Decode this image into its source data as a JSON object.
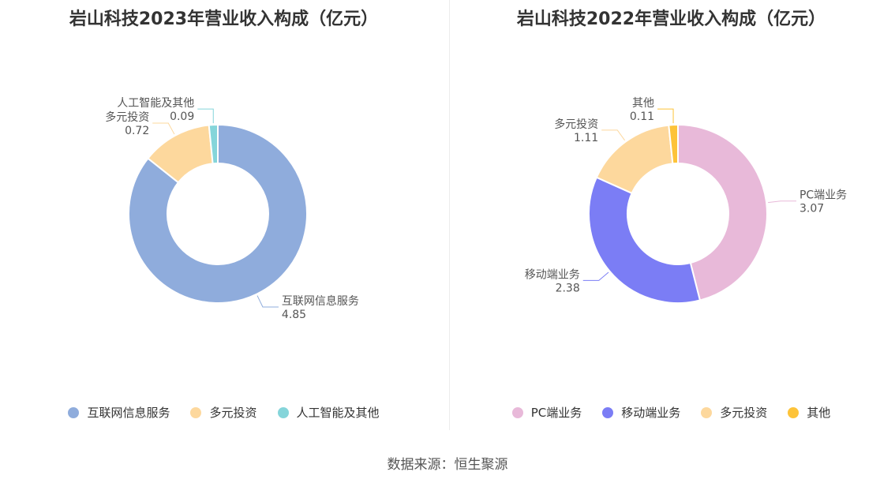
{
  "source": "数据来源：恒生聚源",
  "chart_data": [
    {
      "type": "pie",
      "title": "岩山科技2023年营业收入构成（亿元）",
      "categories": [
        "互联网信息服务",
        "多元投资",
        "人工智能及其他"
      ],
      "values": [
        4.85,
        0.72,
        0.09
      ],
      "colors": [
        "#8facdc",
        "#fdd89d",
        "#85d5da"
      ],
      "legend_position": "bottom"
    },
    {
      "type": "pie",
      "title": "岩山科技2022年营业收入构成（亿元）",
      "categories": [
        "PC端业务",
        "移动端业务",
        "多元投资",
        "其他"
      ],
      "values": [
        3.07,
        2.38,
        1.11,
        0.11
      ],
      "colors": [
        "#e8b9d9",
        "#7b7df5",
        "#fdd89d",
        "#fdc339"
      ],
      "legend_position": "bottom"
    }
  ]
}
